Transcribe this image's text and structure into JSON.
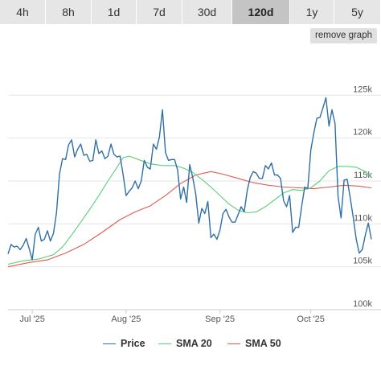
{
  "range_tabs": [
    {
      "label": "4h",
      "active": false
    },
    {
      "label": "8h",
      "active": false
    },
    {
      "label": "1d",
      "active": false
    },
    {
      "label": "7d",
      "active": false
    },
    {
      "label": "30d",
      "active": false
    },
    {
      "label": "120d",
      "active": true
    },
    {
      "label": "1y",
      "active": false
    },
    {
      "label": "5y",
      "active": false
    }
  ],
  "remove_graph_label": "remove graph",
  "colors": {
    "price": "#2f6fa6",
    "sma20": "#5bd07a",
    "sma50": "#e05a4f",
    "grid": "#e6e6e6",
    "tab_bg": "#e6e6e6",
    "tab_active_bg": "#c4c4c4"
  },
  "chart_data": {
    "type": "line",
    "x_ticks": [
      {
        "date": "2025-07-01",
        "label": "Jul '25"
      },
      {
        "date": "2025-08-01",
        "label": "Aug '25"
      },
      {
        "date": "2025-09-01",
        "label": "Sep '25"
      },
      {
        "date": "2025-10-01",
        "label": "Oct '25"
      }
    ],
    "y_ticks": [
      {
        "value": 100000,
        "label": "100k"
      },
      {
        "value": 105000,
        "label": "105k"
      },
      {
        "value": 110000,
        "label": "110k"
      },
      {
        "value": 115000,
        "label": "115k"
      },
      {
        "value": 120000,
        "label": "120k"
      },
      {
        "value": 125000,
        "label": "125k"
      }
    ],
    "ylim": [
      100000,
      130000
    ],
    "xlim": [
      "2025-06-23",
      "2025-10-21"
    ],
    "grid": true,
    "legend_position": "bottom",
    "series": [
      {
        "name": "Price",
        "key": "price",
        "points": [
          [
            "2025-06-23",
            106500
          ],
          [
            "2025-06-24",
            107600
          ],
          [
            "2025-06-25",
            107300
          ],
          [
            "2025-06-26",
            107400
          ],
          [
            "2025-06-27",
            107000
          ],
          [
            "2025-06-28",
            107500
          ],
          [
            "2025-06-29",
            108300
          ],
          [
            "2025-06-30",
            107100
          ],
          [
            "2025-07-01",
            105800
          ],
          [
            "2025-07-02",
            108800
          ],
          [
            "2025-07-03",
            109600
          ],
          [
            "2025-07-04",
            108000
          ],
          [
            "2025-07-05",
            108200
          ],
          [
            "2025-07-06",
            109200
          ],
          [
            "2025-07-07",
            108000
          ],
          [
            "2025-07-08",
            108900
          ],
          [
            "2025-07-09",
            111300
          ],
          [
            "2025-07-10",
            115800
          ],
          [
            "2025-07-11",
            117600
          ],
          [
            "2025-07-12",
            117500
          ],
          [
            "2025-07-13",
            119200
          ],
          [
            "2025-07-14",
            119800
          ],
          [
            "2025-07-15",
            117800
          ],
          [
            "2025-07-16",
            118700
          ],
          [
            "2025-07-17",
            119300
          ],
          [
            "2025-07-18",
            118000
          ],
          [
            "2025-07-19",
            118100
          ],
          [
            "2025-07-20",
            117300
          ],
          [
            "2025-07-21",
            117400
          ],
          [
            "2025-07-22",
            119800
          ],
          [
            "2025-07-23",
            118200
          ],
          [
            "2025-07-24",
            118500
          ],
          [
            "2025-07-25",
            117600
          ],
          [
            "2025-07-26",
            117900
          ],
          [
            "2025-07-27",
            119300
          ],
          [
            "2025-07-28",
            118100
          ],
          [
            "2025-07-29",
            117800
          ],
          [
            "2025-07-30",
            117900
          ],
          [
            "2025-07-31",
            115800
          ],
          [
            "2025-08-01",
            113300
          ],
          [
            "2025-08-02",
            113800
          ],
          [
            "2025-08-03",
            114200
          ],
          [
            "2025-08-04",
            115000
          ],
          [
            "2025-08-05",
            114100
          ],
          [
            "2025-08-06",
            115000
          ],
          [
            "2025-08-07",
            117400
          ],
          [
            "2025-08-08",
            116600
          ],
          [
            "2025-08-09",
            116400
          ],
          [
            "2025-08-10",
            119300
          ],
          [
            "2025-08-11",
            118700
          ],
          [
            "2025-08-12",
            120100
          ],
          [
            "2025-08-13",
            123300
          ],
          [
            "2025-08-14",
            118300
          ],
          [
            "2025-08-15",
            117400
          ],
          [
            "2025-08-16",
            117500
          ],
          [
            "2025-08-17",
            117500
          ],
          [
            "2025-08-18",
            116300
          ],
          [
            "2025-08-19",
            112900
          ],
          [
            "2025-08-20",
            114300
          ],
          [
            "2025-08-21",
            112500
          ],
          [
            "2025-08-22",
            116900
          ],
          [
            "2025-08-23",
            115400
          ],
          [
            "2025-08-24",
            113500
          ],
          [
            "2025-08-25",
            110100
          ],
          [
            "2025-08-26",
            111800
          ],
          [
            "2025-08-27",
            111200
          ],
          [
            "2025-08-28",
            112600
          ],
          [
            "2025-08-29",
            108400
          ],
          [
            "2025-08-30",
            108800
          ],
          [
            "2025-08-31",
            108200
          ],
          [
            "2025-09-01",
            109300
          ],
          [
            "2025-09-02",
            111200
          ],
          [
            "2025-09-03",
            111700
          ],
          [
            "2025-09-04",
            110800
          ],
          [
            "2025-09-05",
            110200
          ],
          [
            "2025-09-06",
            110200
          ],
          [
            "2025-09-07",
            111100
          ],
          [
            "2025-09-08",
            112000
          ],
          [
            "2025-09-09",
            111400
          ],
          [
            "2025-09-10",
            113900
          ],
          [
            "2025-09-11",
            115400
          ],
          [
            "2025-09-12",
            116100
          ],
          [
            "2025-09-13",
            115900
          ],
          [
            "2025-09-14",
            115300
          ],
          [
            "2025-09-15",
            115300
          ],
          [
            "2025-09-16",
            116800
          ],
          [
            "2025-09-17",
            116400
          ],
          [
            "2025-09-18",
            117100
          ],
          [
            "2025-09-19",
            115700
          ],
          [
            "2025-09-20",
            115700
          ],
          [
            "2025-09-21",
            115300
          ],
          [
            "2025-09-22",
            112700
          ],
          [
            "2025-09-23",
            112000
          ],
          [
            "2025-09-24",
            113300
          ],
          [
            "2025-09-25",
            109000
          ],
          [
            "2025-09-26",
            109600
          ],
          [
            "2025-09-27",
            109600
          ],
          [
            "2025-09-28",
            112100
          ],
          [
            "2025-09-29",
            114300
          ],
          [
            "2025-09-30",
            114100
          ],
          [
            "2025-10-01",
            118600
          ],
          [
            "2025-10-02",
            120600
          ],
          [
            "2025-10-03",
            122300
          ],
          [
            "2025-10-04",
            122400
          ],
          [
            "2025-10-05",
            123500
          ],
          [
            "2025-10-06",
            124700
          ],
          [
            "2025-10-07",
            121400
          ],
          [
            "2025-10-08",
            123300
          ],
          [
            "2025-10-09",
            121700
          ],
          [
            "2025-10-10",
            113200
          ],
          [
            "2025-10-11",
            110700
          ],
          [
            "2025-10-12",
            115100
          ],
          [
            "2025-10-13",
            115200
          ],
          [
            "2025-10-14",
            113100
          ],
          [
            "2025-10-15",
            110800
          ],
          [
            "2025-10-16",
            108200
          ],
          [
            "2025-10-17",
            106600
          ],
          [
            "2025-10-18",
            107000
          ],
          [
            "2025-10-19",
            108700
          ],
          [
            "2025-10-20",
            110100
          ],
          [
            "2025-10-21",
            108200
          ]
        ]
      },
      {
        "name": "SMA 20",
        "key": "sma20",
        "points": [
          [
            "2025-06-23",
            105300
          ],
          [
            "2025-06-28",
            105700
          ],
          [
            "2025-07-03",
            105900
          ],
          [
            "2025-07-08",
            106400
          ],
          [
            "2025-07-11",
            107300
          ],
          [
            "2025-07-14",
            108700
          ],
          [
            "2025-07-17",
            110200
          ],
          [
            "2025-07-20",
            111700
          ],
          [
            "2025-07-23",
            113300
          ],
          [
            "2025-07-26",
            115000
          ],
          [
            "2025-07-29",
            116600
          ],
          [
            "2025-07-31",
            117700
          ],
          [
            "2025-08-02",
            117900
          ],
          [
            "2025-08-05",
            117500
          ],
          [
            "2025-08-09",
            117000
          ],
          [
            "2025-08-13",
            116800
          ],
          [
            "2025-08-17",
            116800
          ],
          [
            "2025-08-20",
            116500
          ],
          [
            "2025-08-23",
            116000
          ],
          [
            "2025-08-26",
            115200
          ],
          [
            "2025-08-29",
            114300
          ],
          [
            "2025-09-01",
            113300
          ],
          [
            "2025-09-04",
            112300
          ],
          [
            "2025-09-07",
            111600
          ],
          [
            "2025-09-10",
            111300
          ],
          [
            "2025-09-13",
            111400
          ],
          [
            "2025-09-16",
            112000
          ],
          [
            "2025-09-19",
            112800
          ],
          [
            "2025-09-22",
            113600
          ],
          [
            "2025-09-25",
            114000
          ],
          [
            "2025-09-28",
            113900
          ],
          [
            "2025-10-01",
            114200
          ],
          [
            "2025-10-04",
            115000
          ],
          [
            "2025-10-07",
            116200
          ],
          [
            "2025-10-10",
            116700
          ],
          [
            "2025-10-13",
            116700
          ],
          [
            "2025-10-16",
            116600
          ],
          [
            "2025-10-19",
            116100
          ],
          [
            "2025-10-21",
            115400
          ]
        ]
      },
      {
        "name": "SMA 50",
        "key": "sma50",
        "points": [
          [
            "2025-06-23",
            105000
          ],
          [
            "2025-06-30",
            105500
          ],
          [
            "2025-07-06",
            105800
          ],
          [
            "2025-07-12",
            106600
          ],
          [
            "2025-07-18",
            107600
          ],
          [
            "2025-07-24",
            109000
          ],
          [
            "2025-07-30",
            110500
          ],
          [
            "2025-08-04",
            111400
          ],
          [
            "2025-08-09",
            112100
          ],
          [
            "2025-08-14",
            113300
          ],
          [
            "2025-08-19",
            114700
          ],
          [
            "2025-08-24",
            115700
          ],
          [
            "2025-08-29",
            116100
          ],
          [
            "2025-09-02",
            115800
          ],
          [
            "2025-09-07",
            115300
          ],
          [
            "2025-09-12",
            114800
          ],
          [
            "2025-09-17",
            114500
          ],
          [
            "2025-09-22",
            114300
          ],
          [
            "2025-09-27",
            114200
          ],
          [
            "2025-10-02",
            114100
          ],
          [
            "2025-10-07",
            114300
          ],
          [
            "2025-10-12",
            114500
          ],
          [
            "2025-10-17",
            114400
          ],
          [
            "2025-10-21",
            114200
          ]
        ]
      }
    ]
  },
  "legend": [
    {
      "label": "Price",
      "key": "price"
    },
    {
      "label": "SMA 20",
      "key": "sma20"
    },
    {
      "label": "SMA 50",
      "key": "sma50"
    }
  ]
}
